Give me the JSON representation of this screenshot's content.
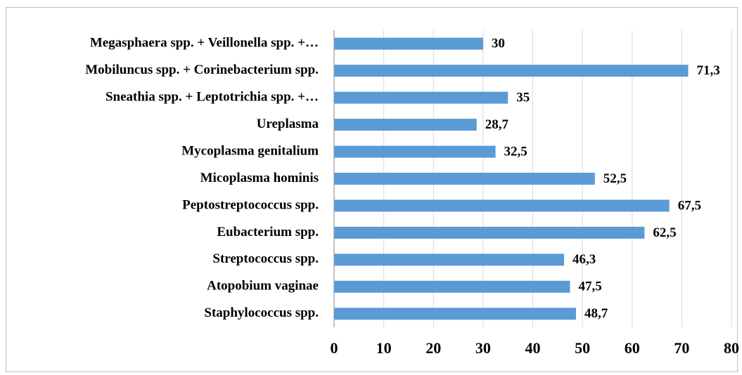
{
  "chart_data": {
    "type": "bar",
    "orientation": "horizontal",
    "categories": [
      "Megasphaera spp. + Veillonella spp. +…",
      "Mobiluncus spp. + Corinebacterium spp.",
      "Sneathia spp. + Leptotrichia spp. +…",
      "Ureplasma",
      "Mycoplasma genitalium",
      "Micoplasma hominis",
      "Peptostreptococcus spp.",
      "Eubacterium spp.",
      "Streptococcus spp.",
      "Atopobium vaginae",
      "Staphylococcus spp."
    ],
    "values": [
      30,
      71.3,
      35,
      28.7,
      32.5,
      52.5,
      67.5,
      62.5,
      46.3,
      47.5,
      48.7
    ],
    "value_labels": [
      "30",
      "71,3",
      "35",
      "28,7",
      "32,5",
      "52,5",
      "67,5",
      "62,5",
      "46,3",
      "47,5",
      "48,7"
    ],
    "color": "#5b9bd5",
    "xlim": [
      0,
      80
    ],
    "xticks": [
      0,
      10,
      20,
      30,
      40,
      50,
      60,
      70,
      80
    ],
    "grid": true
  }
}
